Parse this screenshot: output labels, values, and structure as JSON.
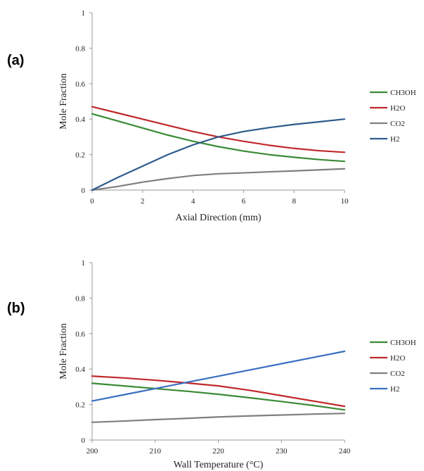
{
  "chart_data": [
    {
      "type": "line",
      "panel_label": "(a)",
      "xlabel": "Axial Direction (mm)",
      "ylabel": "Mole Fraction",
      "xlim": [
        0,
        10
      ],
      "ylim": [
        0,
        1
      ],
      "x_ticks": [
        "0",
        "2",
        "4",
        "6",
        "8",
        "10"
      ],
      "y_ticks": [
        "0",
        "0.2",
        "0.4",
        "0.6",
        "0.8",
        "1"
      ],
      "legend_position": "right",
      "x": [
        0,
        1,
        2,
        3,
        4,
        5,
        6,
        7,
        8,
        9,
        10
      ],
      "series": [
        {
          "name": "CH3OH",
          "color": "#3a8a35",
          "values": [
            0.43,
            0.39,
            0.35,
            0.31,
            0.275,
            0.245,
            0.22,
            0.2,
            0.185,
            0.172,
            0.162
          ]
        },
        {
          "name": "H2O",
          "color": "#c0282a",
          "values": [
            0.47,
            0.435,
            0.4,
            0.365,
            0.33,
            0.3,
            0.275,
            0.253,
            0.235,
            0.222,
            0.213
          ]
        },
        {
          "name": "CO2",
          "color": "#7f7f7f",
          "values": [
            0.0,
            0.02,
            0.045,
            0.065,
            0.082,
            0.092,
            0.097,
            0.103,
            0.108,
            0.114,
            0.12
          ]
        },
        {
          "name": "H2",
          "color": "#2e5b8c",
          "values": [
            0.0,
            0.07,
            0.135,
            0.2,
            0.255,
            0.3,
            0.33,
            0.352,
            0.37,
            0.385,
            0.4
          ]
        }
      ]
    },
    {
      "type": "line",
      "panel_label": "(b)",
      "xlabel": "Wall Temperature (°C)",
      "ylabel": "Mole Fraction",
      "xlim": [
        200,
        240
      ],
      "ylim": [
        0,
        1
      ],
      "x_ticks": [
        "200",
        "210",
        "220",
        "230",
        "240"
      ],
      "y_ticks": [
        "0",
        "0.2",
        "0.4",
        "0.6",
        "0.8",
        "1"
      ],
      "legend_position": "right",
      "x": [
        200,
        205,
        210,
        215,
        220,
        225,
        230,
        235,
        240
      ],
      "series": [
        {
          "name": "CH3OH",
          "color": "#3a8a35",
          "values": [
            0.32,
            0.305,
            0.29,
            0.275,
            0.258,
            0.238,
            0.217,
            0.195,
            0.17
          ]
        },
        {
          "name": "H2O",
          "color": "#c0282a",
          "values": [
            0.36,
            0.35,
            0.337,
            0.322,
            0.305,
            0.28,
            0.25,
            0.22,
            0.19
          ]
        },
        {
          "name": "CO2",
          "color": "#7f7f7f",
          "values": [
            0.1,
            0.107,
            0.115,
            0.122,
            0.13,
            0.136,
            0.141,
            0.146,
            0.15
          ]
        },
        {
          "name": "H2",
          "color": "#3a6fc0",
          "values": [
            0.22,
            0.255,
            0.29,
            0.325,
            0.36,
            0.395,
            0.43,
            0.465,
            0.5
          ]
        }
      ]
    }
  ]
}
